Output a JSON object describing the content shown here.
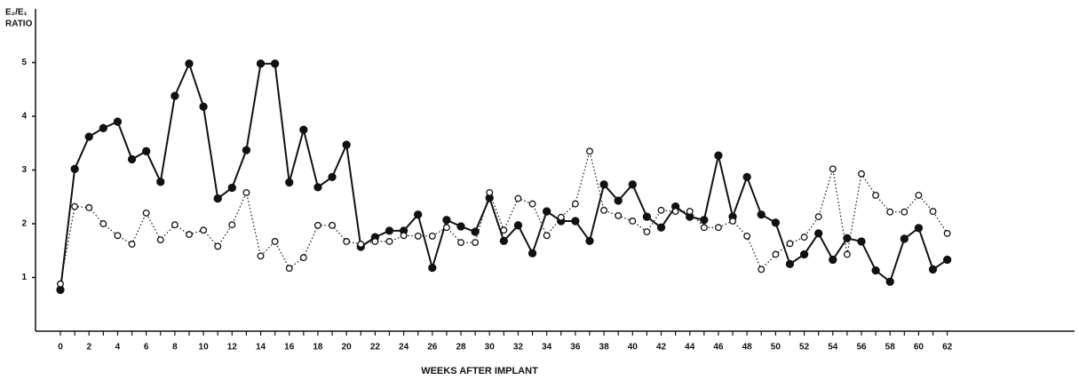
{
  "chart_data": {
    "type": "line",
    "ylabel": [
      "E₂/E₁",
      "RATIO"
    ],
    "xlabel": "WEEKS AFTER IMPLANT",
    "x": [
      0,
      1,
      2,
      3,
      4,
      5,
      6,
      7,
      8,
      9,
      10,
      11,
      12,
      13,
      14,
      15,
      16,
      17,
      18,
      19,
      20,
      21,
      22,
      23,
      24,
      25,
      26,
      27,
      28,
      29,
      30,
      31,
      32,
      33,
      34,
      35,
      36,
      37,
      38,
      39,
      40,
      41,
      42,
      43,
      44,
      45,
      46,
      47,
      48,
      49,
      50,
      51,
      52,
      53,
      54,
      55,
      56,
      57,
      58,
      59,
      60,
      61,
      62
    ],
    "series": [
      {
        "color": "#111111",
        "marker": "filled",
        "linestyle": "solid",
        "values": [
          0.77,
          3.02,
          3.62,
          3.78,
          3.9,
          3.2,
          3.35,
          2.78,
          4.38,
          4.98,
          4.18,
          2.47,
          2.67,
          3.37,
          4.98,
          4.98,
          2.77,
          3.75,
          2.68,
          2.87,
          3.47,
          1.57,
          1.75,
          1.87,
          1.87,
          2.17,
          1.18,
          2.07,
          1.95,
          1.85,
          2.48,
          1.68,
          1.97,
          1.45,
          2.23,
          2.05,
          2.05,
          1.68,
          2.73,
          2.43,
          2.73,
          2.13,
          1.93,
          2.32,
          2.13,
          2.07,
          3.27,
          2.13,
          2.87,
          2.17,
          2.02,
          1.25,
          1.43,
          1.82,
          1.33,
          1.73,
          1.67,
          1.13,
          0.92,
          1.72,
          1.92,
          1.15,
          1.33
        ]
      },
      {
        "color": "#111111",
        "marker": "open",
        "linestyle": "dotted",
        "values": [
          0.88,
          2.32,
          2.3,
          2.0,
          1.78,
          1.62,
          2.2,
          1.7,
          1.98,
          1.8,
          1.88,
          1.58,
          1.98,
          2.58,
          1.4,
          1.67,
          1.17,
          1.37,
          1.97,
          1.97,
          1.67,
          1.62,
          1.67,
          1.67,
          1.78,
          1.77,
          1.77,
          1.93,
          1.65,
          1.65,
          2.58,
          1.88,
          2.47,
          2.37,
          1.78,
          2.12,
          2.37,
          3.35,
          2.25,
          2.15,
          2.05,
          1.85,
          2.25,
          2.23,
          2.23,
          1.93,
          1.93,
          2.05,
          1.77,
          1.15,
          1.43,
          1.63,
          1.75,
          2.13,
          3.02,
          1.43,
          2.93,
          2.53,
          2.22,
          2.22,
          2.53,
          2.23,
          1.82
        ]
      }
    ],
    "xlim": [
      -1.74,
      70.9
    ],
    "ylim": [
      0,
      6
    ],
    "xticks": [
      0,
      2,
      4,
      6,
      8,
      10,
      12,
      14,
      16,
      18,
      20,
      22,
      24,
      26,
      28,
      30,
      32,
      34,
      36,
      38,
      40,
      42,
      44,
      46,
      48,
      50,
      52,
      54,
      56,
      58,
      60,
      62
    ],
    "yticks": [
      1,
      2,
      3,
      4,
      5
    ]
  }
}
